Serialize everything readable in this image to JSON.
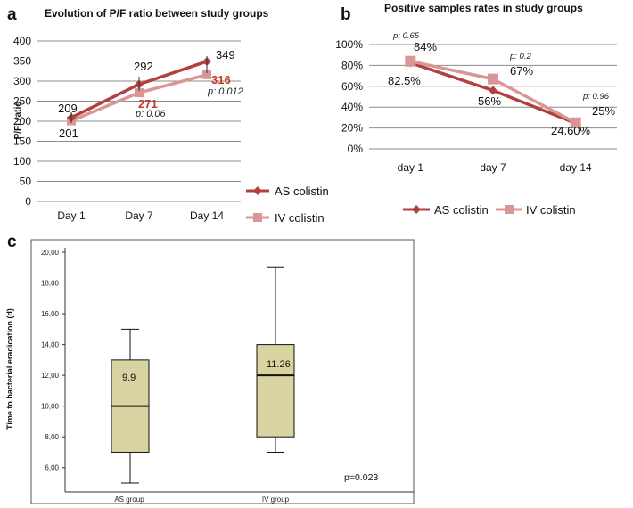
{
  "panels": {
    "a": {
      "letter": "a"
    },
    "b": {
      "letter": "b"
    },
    "c": {
      "letter": "c"
    }
  },
  "colors": {
    "as_series": "#b0413e",
    "iv_series": "#d99694",
    "annotation_red": "#c0392b",
    "box_fill": "#d8d3a0",
    "grid": "#8c8c8c"
  },
  "chart_data": [
    {
      "id": "a",
      "type": "line",
      "title": "Evolution of  P/F ratio between study groups",
      "xlabel": "",
      "ylabel": "P/Fi  ratio",
      "categories": [
        "Day 1",
        "Day 7",
        "Day 14"
      ],
      "ylim": [
        0,
        400
      ],
      "yticks": [
        0,
        50,
        100,
        150,
        200,
        250,
        300,
        350,
        400
      ],
      "ytick_labels": [
        "0",
        "50",
        "100",
        "150",
        "200",
        "250",
        "300",
        "350",
        "400"
      ],
      "grid": true,
      "series": [
        {
          "name": "AS colistin",
          "marker": "diamond",
          "values": [
            209,
            292,
            349
          ],
          "labels": [
            "209",
            "292",
            "349"
          ]
        },
        {
          "name": "IV colistin",
          "marker": "square",
          "values": [
            201,
            271,
            316
          ],
          "labels": [
            "201",
            "271",
            "316"
          ]
        }
      ],
      "annotations": [
        "p: 0.06",
        "p:  0.012"
      ],
      "legend_position": "bottom-right"
    },
    {
      "id": "b",
      "type": "line",
      "title": "Positive samples rates in study groups",
      "xlabel": "",
      "ylabel": "",
      "categories": [
        "day 1",
        "day 7",
        "day 14"
      ],
      "ylim": [
        0,
        100
      ],
      "yticks": [
        0,
        20,
        40,
        60,
        80,
        100
      ],
      "ytick_labels": [
        "0%",
        "20%",
        "40%",
        "60%",
        "80%",
        "100%"
      ],
      "grid": true,
      "series": [
        {
          "name": "AS colistin",
          "marker": "diamond",
          "values": [
            82.5,
            56,
            24.6
          ],
          "labels": [
            "82.5%",
            "56%",
            "24.60%"
          ]
        },
        {
          "name": "IV colistin",
          "marker": "square",
          "values": [
            84,
            67,
            25
          ],
          "labels": [
            "84%",
            "67%",
            "25%"
          ]
        }
      ],
      "annotations": [
        "p: 0.65",
        "p: 0.2",
        "p: 0.96"
      ],
      "legend_position": "bottom"
    },
    {
      "id": "c",
      "type": "box",
      "title": "",
      "xlabel": "",
      "ylabel": "Time to bacterial eradication (d)",
      "categories": [
        "AS group",
        "IV group"
      ],
      "ylim": [
        5,
        20
      ],
      "yticks": [
        6,
        8,
        10,
        12,
        14,
        16,
        18,
        20
      ],
      "ytick_labels": [
        "6,00",
        "8,00",
        "10,00",
        "12,00",
        "14,00",
        "16,00",
        "18,00",
        "20,00"
      ],
      "boxes": [
        {
          "name": "AS group",
          "min": 5,
          "q1": 7,
          "median": 10,
          "q3": 13,
          "max": 15,
          "mean_label": "9.9"
        },
        {
          "name": "IV group",
          "min": 7,
          "q1": 8,
          "median": 12,
          "q3": 14,
          "max": 19,
          "mean_label": "11.26"
        }
      ],
      "annotation": "p=0.023"
    }
  ]
}
